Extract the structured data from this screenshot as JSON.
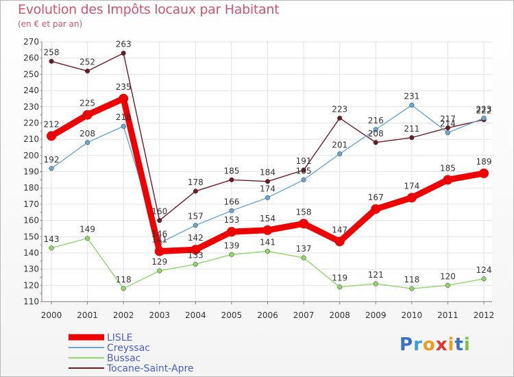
{
  "header": {
    "title": "Evolution des Impôts locaux par Habitant",
    "subtitle": "(en € et par an)"
  },
  "logo": {
    "text": "Proxiti"
  },
  "chart_data": {
    "type": "line",
    "title": "Evolution des Impôts locaux par Habitant",
    "subtitle": "(en € et par an)",
    "xlabel": "",
    "ylabel": "",
    "x": [
      "2000",
      "2001",
      "2002",
      "2003",
      "2004",
      "2005",
      "2006",
      "2007",
      "2008",
      "2009",
      "2010",
      "2011",
      "2012"
    ],
    "ylim": [
      110,
      270
    ],
    "yticks": [
      110,
      120,
      130,
      140,
      150,
      160,
      170,
      180,
      190,
      200,
      210,
      220,
      230,
      240,
      250,
      260,
      270
    ],
    "grid": true,
    "legend": "bottom-left",
    "series": [
      {
        "name": "Tocane-Saint-Apre",
        "color": "#6e1a24",
        "values": [
          258,
          252,
          263,
          160,
          178,
          185,
          184,
          191,
          223,
          208,
          211,
          217,
          222
        ],
        "labels": [
          "258",
          "252",
          "263",
          "160",
          "178",
          "185",
          "184",
          "191",
          "223",
          "208",
          "211",
          "217",
          "222"
        ]
      },
      {
        "name": "Creyssac",
        "color": "#6aa6d4",
        "values": [
          192,
          208,
          218,
          146,
          157,
          166,
          174,
          185,
          201,
          216,
          231,
          214,
          223
        ],
        "labels": [
          "192",
          "208",
          "218",
          "146",
          "157",
          "166",
          "174",
          "185",
          "201",
          "216",
          "231",
          "214",
          "223"
        ]
      },
      {
        "name": "Bussac",
        "color": "#8ed66a",
        "values": [
          143,
          149,
          118,
          129,
          133,
          139,
          141,
          137,
          119,
          121,
          118,
          120,
          124
        ],
        "labels": [
          "143",
          "149",
          "118",
          "129",
          "133",
          "139",
          "141",
          "137",
          "119",
          "121",
          "118",
          "120",
          "124"
        ]
      },
      {
        "name": "LISLE",
        "color": "#ee0000",
        "values": [
          212,
          225,
          235,
          141,
          142,
          153,
          154,
          158,
          147,
          167,
          174,
          185,
          189
        ],
        "labels": [
          "212",
          "225",
          "235",
          "141",
          "142",
          "153",
          "154",
          "158",
          "147",
          "167",
          "174",
          "185",
          "189"
        ]
      }
    ],
    "legend_order": [
      "LISLE",
      "Creyssac",
      "Bussac",
      "Tocane-Saint-Apre"
    ]
  }
}
